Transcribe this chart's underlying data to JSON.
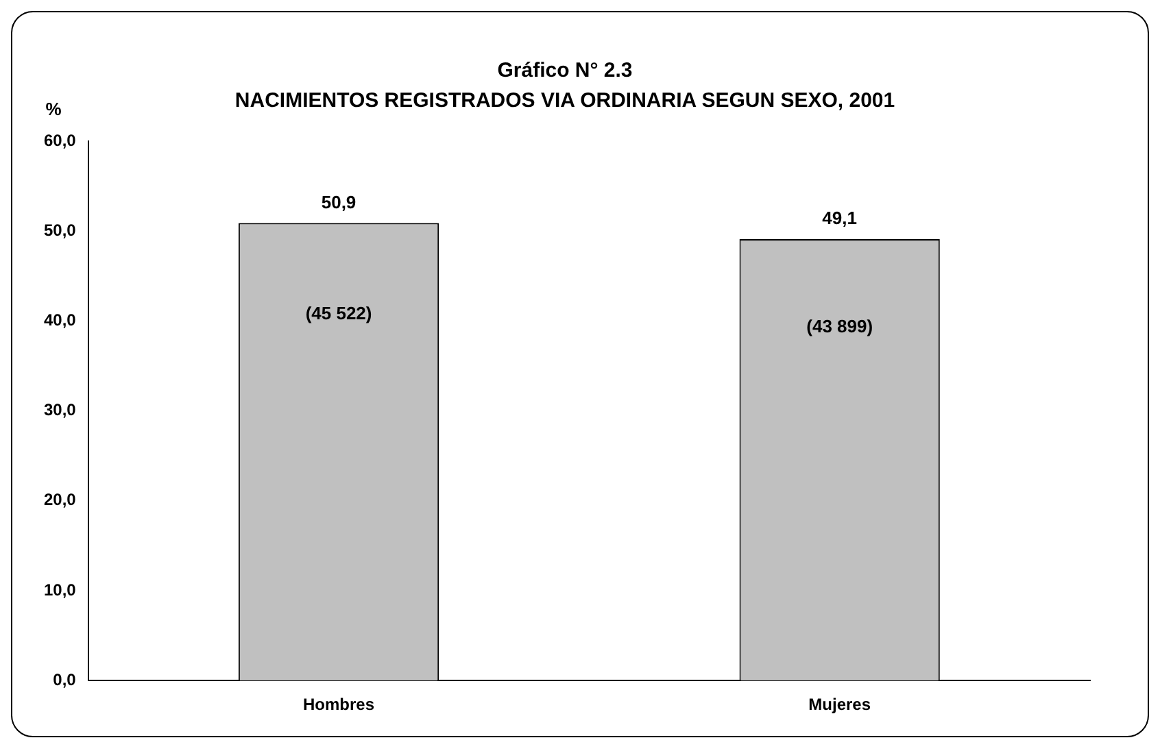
{
  "chart_data": {
    "type": "bar",
    "title": "Gráfico N° 2.3",
    "subtitle": "NACIMIENTOS REGISTRADOS VIA ORDINARIA SEGUN SEXO, 2001",
    "ylabel": "%",
    "categories": [
      "Hombres",
      "Mujeres"
    ],
    "values": [
      50.9,
      49.1
    ],
    "value_labels": [
      "50,9",
      "49,1"
    ],
    "color": "#c0c0c0",
    "ylim": [
      0,
      60
    ],
    "yticks": [
      {
        "value": 0,
        "label": "0,0"
      },
      {
        "value": 10,
        "label": "10,0"
      },
      {
        "value": 20,
        "label": "20,0"
      },
      {
        "value": 30,
        "label": "30,0"
      },
      {
        "value": 40,
        "label": "40,0"
      },
      {
        "value": 50,
        "label": "50,0"
      },
      {
        "value": 60,
        "label": "60,0"
      }
    ],
    "annotations": [
      "(45 522)",
      "(43 899)"
    ],
    "grid": false,
    "legend": false
  }
}
